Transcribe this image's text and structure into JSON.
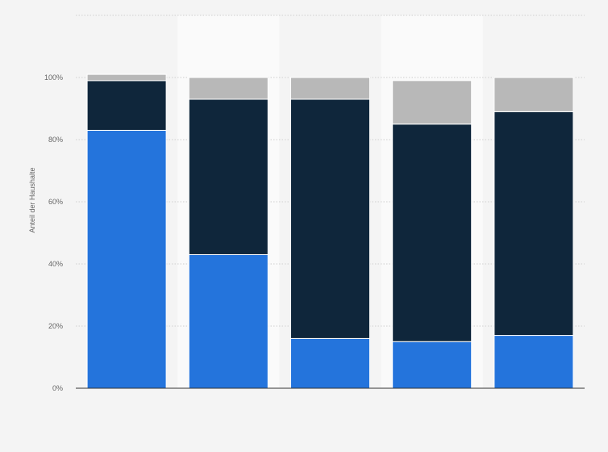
{
  "chart_data": {
    "type": "bar",
    "stacked": true,
    "title": "",
    "xlabel": "",
    "ylabel": "Anteil der Haushalte",
    "categories": [
      "",
      "",
      "",
      "",
      ""
    ],
    "series": [
      {
        "color": "#2474dc",
        "values": [
          83,
          43,
          16,
          15,
          17
        ]
      },
      {
        "color": "#0f263b",
        "values": [
          16,
          50,
          77,
          70,
          72
        ]
      },
      {
        "color": "#b8b8b8",
        "values": [
          2,
          7,
          7,
          14,
          11
        ]
      }
    ],
    "yticks": [
      "0%",
      "20%",
      "40%",
      "60%",
      "80%",
      "100%"
    ],
    "ytick_values": [
      0,
      20,
      40,
      60,
      80,
      100
    ],
    "ylim": [
      0,
      120
    ],
    "grid": true,
    "legend": false
  }
}
